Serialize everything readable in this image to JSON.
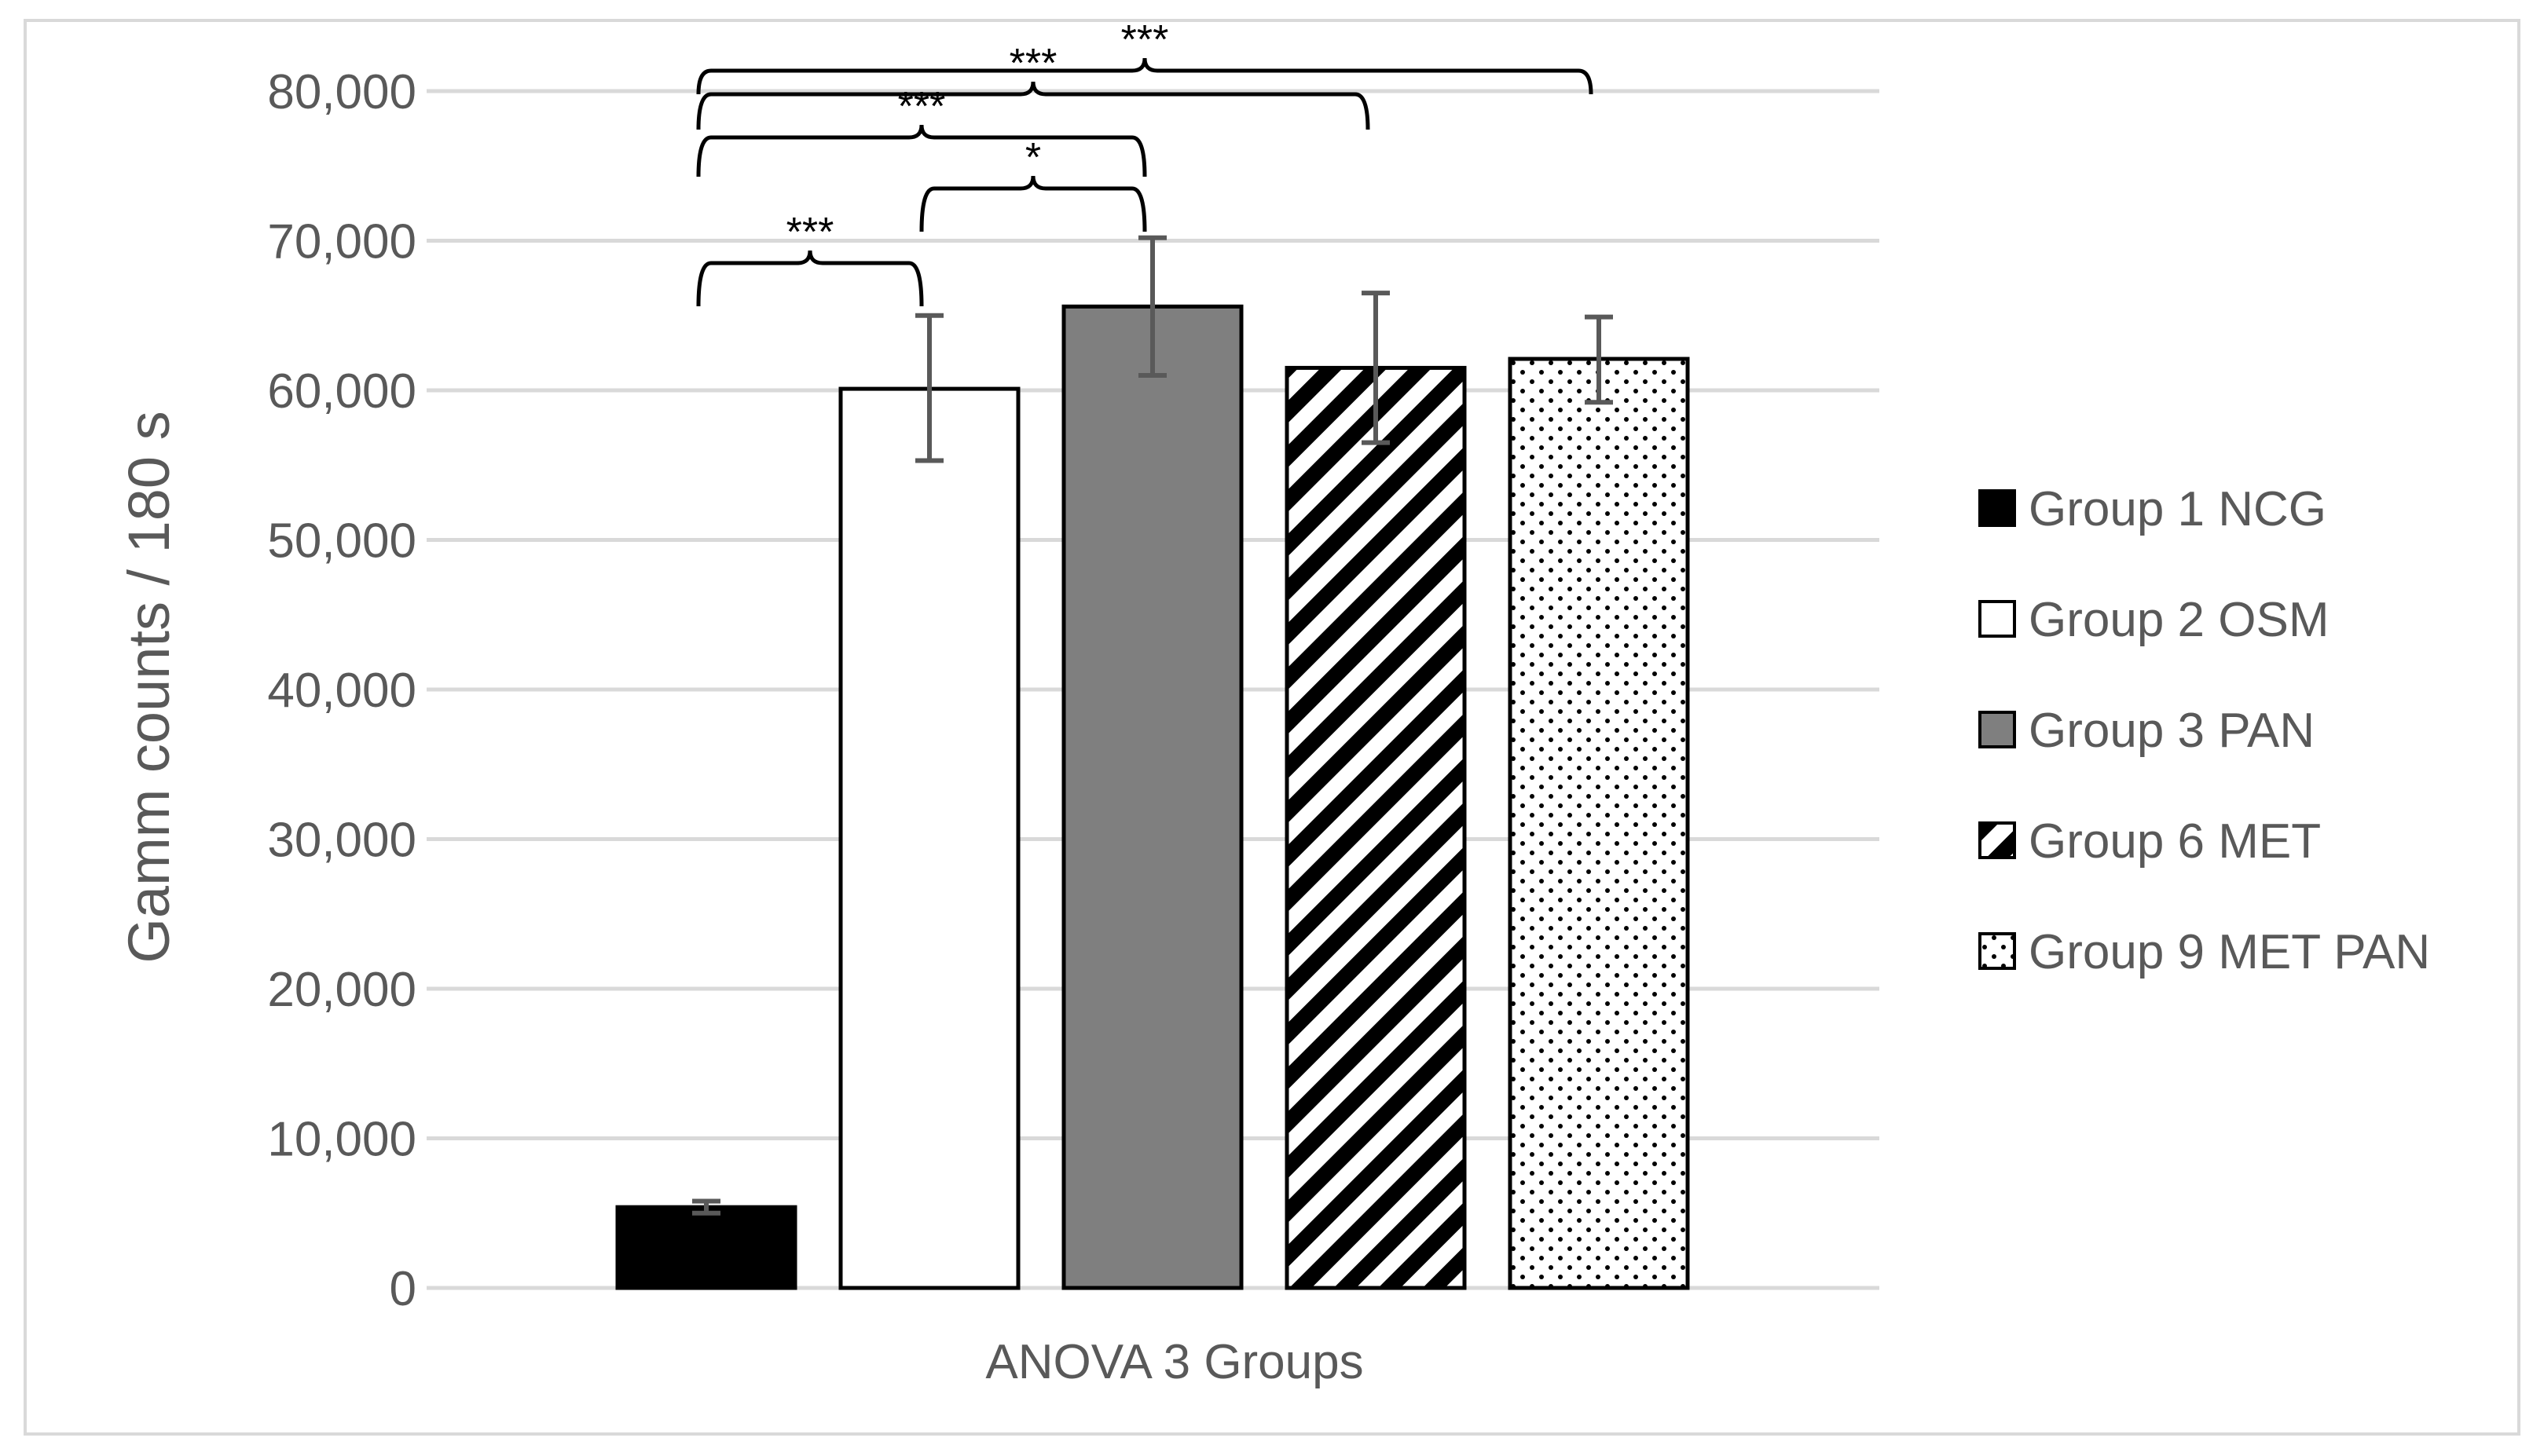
{
  "chart_data": {
    "type": "bar",
    "title": "",
    "xlabel": "ANOVA 3 Groups",
    "ylabel": "Gamm counts / 180 s",
    "category": "ANOVA 3 Groups",
    "ylim": [
      0,
      80000
    ],
    "yticks": [
      0,
      10000,
      20000,
      30000,
      40000,
      50000,
      60000,
      70000,
      80000
    ],
    "ytick_labels": [
      "0",
      "10,000",
      "20,000",
      "30,000",
      "40,000",
      "50,000",
      "60,000",
      "70,000",
      "80,000"
    ],
    "grid": true,
    "legend_position": "right",
    "series": [
      {
        "name": "Group 1 NCG",
        "value": 5400,
        "error_low": 5000,
        "error_high": 5800,
        "fill": "#000000",
        "pattern": "solid"
      },
      {
        "name": "Group 2 OSM",
        "value": 60100,
        "error_low": 55300,
        "error_high": 65000,
        "fill": "#ffffff",
        "pattern": "solid"
      },
      {
        "name": "Group 3 PAN",
        "value": 65600,
        "error_low": 61000,
        "error_high": 70200,
        "fill": "#7f7f7f",
        "pattern": "solid"
      },
      {
        "name": "Group 6 MET",
        "value": 61500,
        "error_low": 56500,
        "error_high": 66500,
        "fill": "#ffffff",
        "pattern": "diagonal-stripes"
      },
      {
        "name": "Group 9 MET PAN",
        "value": 62100,
        "error_low": 59200,
        "error_high": 64900,
        "fill": "#ffffff",
        "pattern": "dots"
      }
    ],
    "significance": [
      {
        "from": 0,
        "to": 1,
        "label": "***"
      },
      {
        "from": 1,
        "to": 2,
        "label": "*"
      },
      {
        "from": 0,
        "to": 2,
        "label": "***"
      },
      {
        "from": 0,
        "to": 3,
        "label": "***"
      },
      {
        "from": 0,
        "to": 4,
        "label": "***"
      }
    ],
    "colors": {
      "gridline": "#d9d9d9",
      "axis_text": "#595959",
      "error_bar": "#595959",
      "bar_outline": "#000000",
      "frame": "#d9d9d9"
    }
  }
}
